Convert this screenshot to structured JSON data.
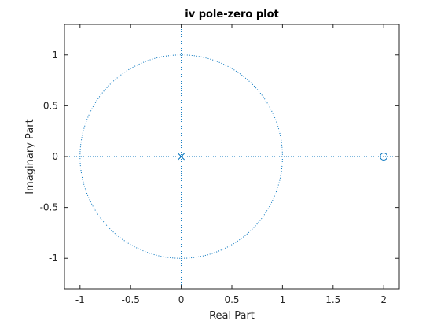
{
  "chart_data": {
    "type": "scatter",
    "title": "iv pole-zero plot",
    "xlabel": "Real Part",
    "ylabel": "Imaginary Part",
    "xlim": [
      -1.1538,
      2.1538
    ],
    "ylim": [
      -1.3,
      1.3
    ],
    "xticks": [
      -1,
      -0.5,
      0,
      0.5,
      1,
      1.5,
      2
    ],
    "xtick_labels": [
      "-1",
      "-0.5",
      "0",
      "0.5",
      "1",
      "1.5",
      "2"
    ],
    "yticks": [
      -1,
      -0.5,
      0,
      0.5,
      1
    ],
    "ytick_labels": [
      "-1",
      "-0.5",
      "0",
      "0.5",
      "1"
    ],
    "grid": false,
    "unit_circle": {
      "center": [
        0,
        0
      ],
      "radius": 1,
      "style": "dotted"
    },
    "reference_lines": {
      "real_axis": 0,
      "imaginary_axis": 0,
      "style": "dotted"
    },
    "series": [
      {
        "marker": "x",
        "points": [
          [
            0,
            0
          ]
        ]
      },
      {
        "marker": "o",
        "points": [
          [
            2,
            0
          ]
        ]
      }
    ],
    "colors": {
      "marker": "#0072BD",
      "axes": "#262626"
    }
  }
}
